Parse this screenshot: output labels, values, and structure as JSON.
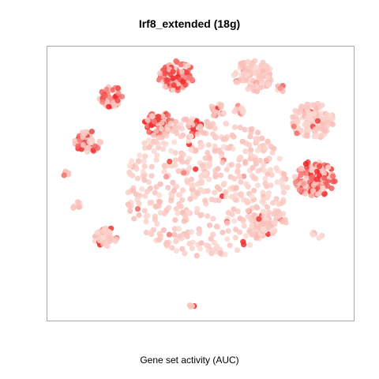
{
  "chart_data": {
    "type": "scatter",
    "title": "Irf8_extended (18g)",
    "xlabel": "Gene set activity (AUC)",
    "ylabel": "",
    "axes_visible": false,
    "grid": false,
    "legend": "none",
    "colors": {
      "low": "#fbdcd5",
      "high": "#ee2020"
    },
    "clusters": [
      {
        "x": 0.42,
        "y": 0.91,
        "r": 0.06,
        "n": 110,
        "act": 0.75
      },
      {
        "x": 0.2,
        "y": 0.83,
        "r": 0.042,
        "n": 45,
        "act": 0.6
      },
      {
        "x": 0.68,
        "y": 0.91,
        "r": 0.065,
        "n": 110,
        "act": 0.04
      },
      {
        "x": 0.88,
        "y": 0.74,
        "r": 0.072,
        "n": 130,
        "act": 0.04
      },
      {
        "x": 0.36,
        "y": 0.73,
        "r": 0.048,
        "n": 60,
        "act": 0.7
      },
      {
        "x": 0.48,
        "y": 0.72,
        "r": 0.03,
        "n": 25,
        "act": 0.45
      },
      {
        "x": 0.56,
        "y": 0.78,
        "r": 0.025,
        "n": 18,
        "act": 0.5
      },
      {
        "x": 0.63,
        "y": 0.78,
        "r": 0.02,
        "n": 12,
        "act": 0.4
      },
      {
        "x": 0.77,
        "y": 0.86,
        "r": 0.018,
        "n": 10,
        "act": 0.5
      },
      {
        "x": 0.12,
        "y": 0.66,
        "r": 0.045,
        "n": 55,
        "act": 0.5
      },
      {
        "x": 0.89,
        "y": 0.52,
        "r": 0.07,
        "n": 140,
        "act": 0.6
      },
      {
        "x": 0.71,
        "y": 0.34,
        "r": 0.05,
        "n": 65,
        "act": 0.08
      },
      {
        "x": 0.18,
        "y": 0.3,
        "r": 0.04,
        "n": 45,
        "act": 0.1
      },
      {
        "x": 0.08,
        "y": 0.42,
        "r": 0.018,
        "n": 8,
        "act": 0.1
      },
      {
        "x": 0.05,
        "y": 0.54,
        "r": 0.015,
        "n": 6,
        "act": 0.3
      },
      {
        "x": 0.9,
        "y": 0.31,
        "r": 0.02,
        "n": 8,
        "act": 0.05
      },
      {
        "x": 0.78,
        "y": 0.37,
        "r": 0.022,
        "n": 10,
        "act": 0.05
      },
      {
        "x": 0.47,
        "y": 0.04,
        "r": 0.012,
        "n": 4,
        "act": 0.3
      },
      {
        "x": 0.52,
        "y": 0.49,
        "r": 0.28,
        "n": 520,
        "act": 0.03
      }
    ]
  }
}
